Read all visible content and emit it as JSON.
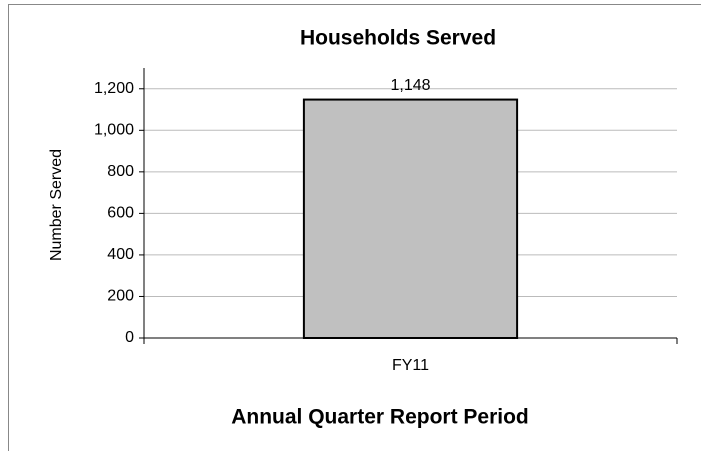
{
  "chart_data": {
    "type": "bar",
    "title": "Households Served",
    "x_label": "Annual Quarter Report Period",
    "y_label": "Number Served",
    "categories": [
      "FY11"
    ],
    "values": [
      1148
    ],
    "value_labels": [
      "1,148"
    ],
    "color": "#c0c0c0",
    "ylim": [
      0,
      1300
    ],
    "yticks": [
      0,
      200,
      400,
      600,
      800,
      {
        "value": 1000,
        "label": "1,000"
      },
      {
        "value": 1200,
        "label": "1,200"
      }
    ],
    "grid": true
  }
}
